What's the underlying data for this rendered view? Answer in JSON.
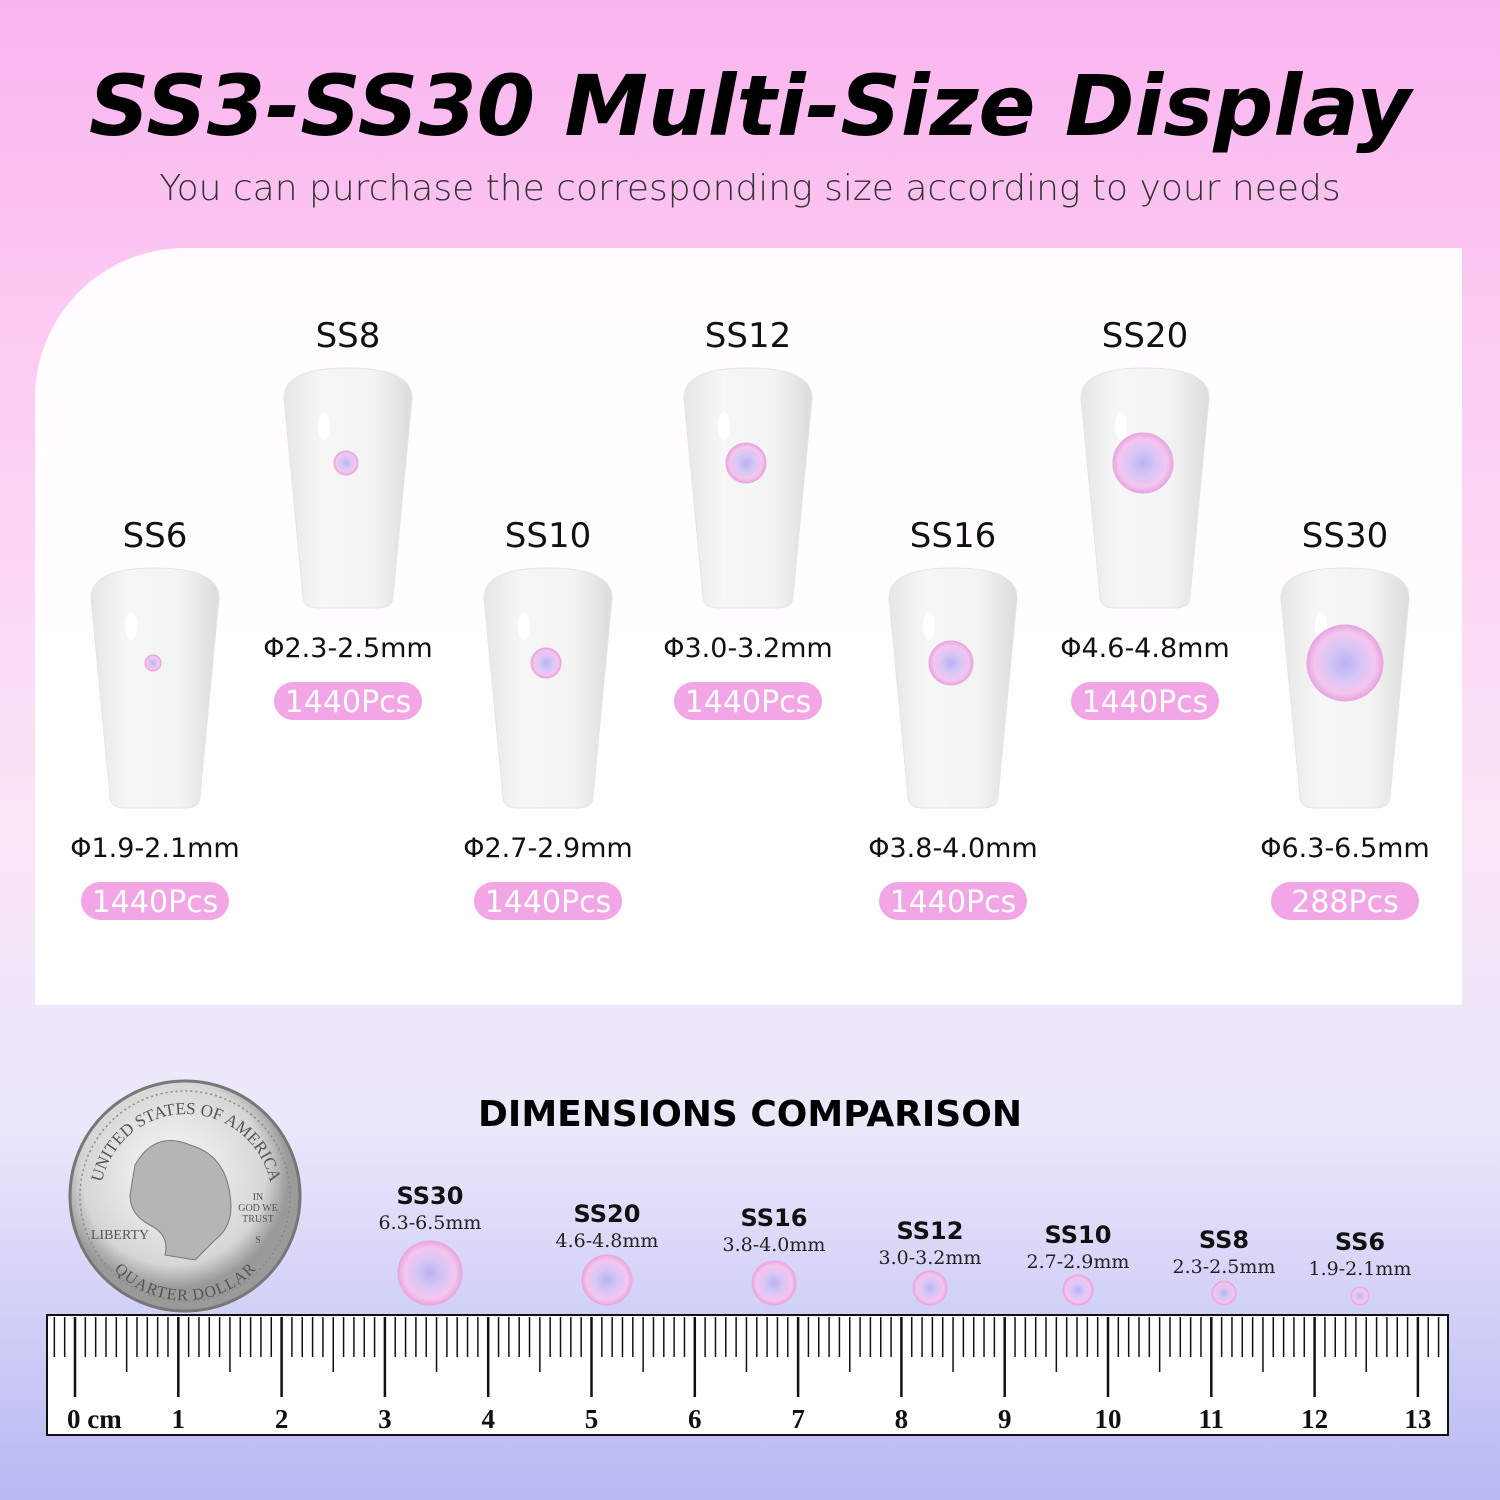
{
  "header": {
    "title": "SS3-SS30 Multi-Size Display",
    "subtitle": "You can purchase the corresponding size according to your needs"
  },
  "nails": [
    {
      "label": "SS6",
      "size": "Φ1.9-2.1mm",
      "pcs": "1440Pcs"
    },
    {
      "label": "SS8",
      "size": "Φ2.3-2.5mm",
      "pcs": "1440Pcs"
    },
    {
      "label": "SS10",
      "size": "Φ2.7-2.9mm",
      "pcs": "1440Pcs"
    },
    {
      "label": "SS12",
      "size": "Φ3.0-3.2mm",
      "pcs": "1440Pcs"
    },
    {
      "label": "SS16",
      "size": "Φ3.8-4.0mm",
      "pcs": "1440Pcs"
    },
    {
      "label": "SS20",
      "size": "Φ4.6-4.8mm",
      "pcs": "1440Pcs"
    },
    {
      "label": "SS30",
      "size": "Φ6.3-6.5mm",
      "pcs": "288Pcs"
    }
  ],
  "comparison": {
    "title": "DIMENSIONS COMPARISON",
    "items": [
      {
        "label": "SS30",
        "size": "6.3-6.5mm"
      },
      {
        "label": "SS20",
        "size": "4.6-4.8mm"
      },
      {
        "label": "SS16",
        "size": "3.8-4.0mm"
      },
      {
        "label": "SS12",
        "size": "3.0-3.2mm"
      },
      {
        "label": "SS10",
        "size": "2.7-2.9mm"
      },
      {
        "label": "SS8",
        "size": "2.3-2.5mm"
      },
      {
        "label": "SS6",
        "size": "1.9-2.1mm"
      }
    ],
    "coin": {
      "top": "UNITED STATES OF AMERICA",
      "left": "LIBERTY",
      "motto": [
        "IN",
        "GOD WE",
        "TRUST"
      ],
      "mint": "S",
      "bottom": "QUARTER DOLLAR"
    },
    "ruler": [
      "0 cm",
      "1",
      "2",
      "3",
      "4",
      "5",
      "6",
      "7",
      "8",
      "9",
      "10",
      "11",
      "12",
      "13"
    ]
  }
}
